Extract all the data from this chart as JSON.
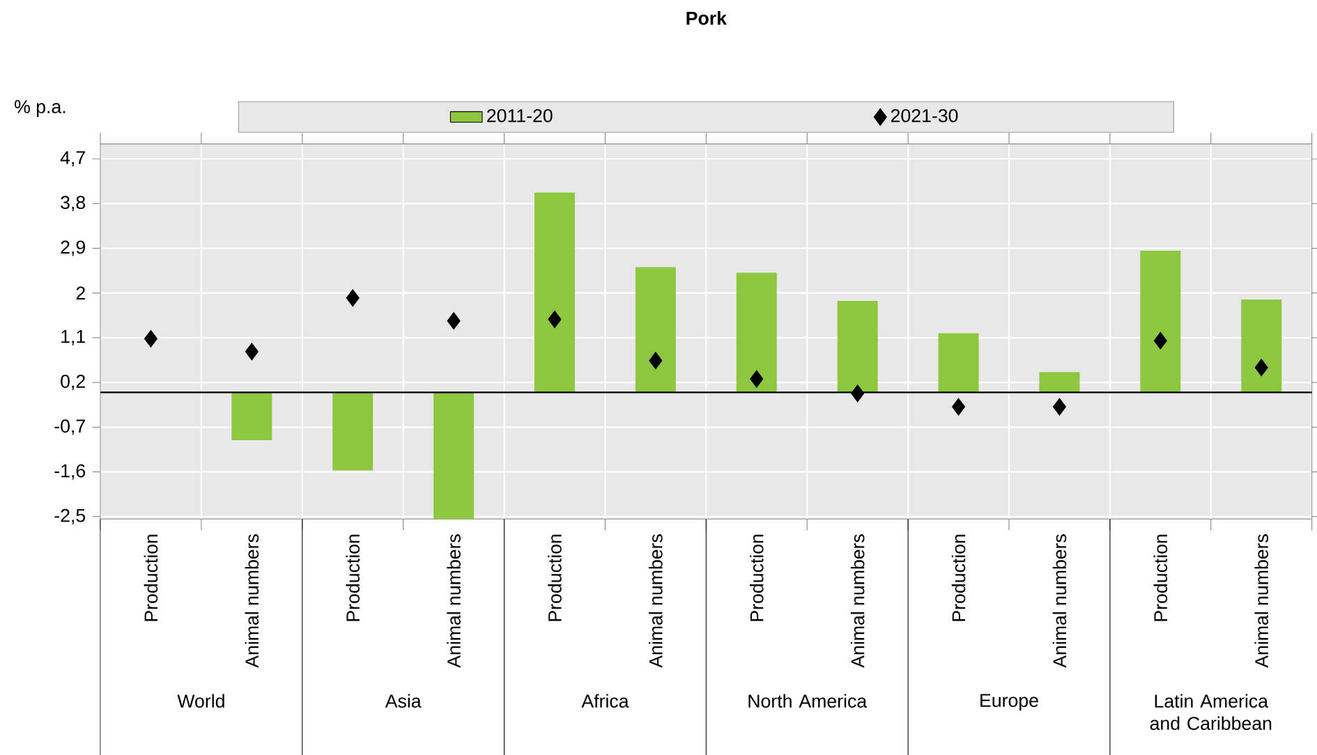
{
  "chart_data": {
    "type": "bar",
    "title": "Pork",
    "ylabel": "% p.a.",
    "categories": [
      "Production",
      "Animal numbers",
      "Production",
      "Animal numbers",
      "Production",
      "Animal numbers",
      "Production",
      "Animal numbers",
      "Production",
      "Animal numbers",
      "Production",
      "Animal numbers"
    ],
    "series": [
      {
        "name": "2011-20",
        "color": "#8dc63f",
        "values": [
          null,
          -0.96,
          -1.57,
          -2.55,
          4.02,
          2.52,
          2.41,
          1.84,
          1.19,
          0.41,
          2.85,
          1.87
        ]
      },
      {
        "name": "2021-30",
        "type": "scatter",
        "marker": "diamond",
        "color": "#000000",
        "values": [
          1.08,
          0.82,
          1.9,
          1.44,
          1.47,
          0.64,
          0.27,
          -0.02,
          -0.29,
          -0.29,
          1.04,
          0.5
        ]
      }
    ],
    "ylim": [
      -2.55,
      5.0
    ],
    "yticks": [
      {
        "value": -2.5,
        "label": "-2,5"
      },
      {
        "value": -1.6,
        "label": "-1,6"
      },
      {
        "value": -0.7,
        "label": "-0,7"
      },
      {
        "value": 0.2,
        "label": "0,2"
      },
      {
        "value": 1.1,
        "label": "1,1"
      },
      2,
      {
        "value": 2.9,
        "label": "2,9"
      },
      {
        "value": 3.8,
        "label": "3,8"
      },
      {
        "value": 4.7,
        "label": "4,7"
      }
    ],
    "grid": true,
    "legend": "top",
    "annotations": [
      "World",
      "Asia",
      "Africa",
      "North America",
      "Europe",
      "Latin America and Caribbean"
    ]
  }
}
